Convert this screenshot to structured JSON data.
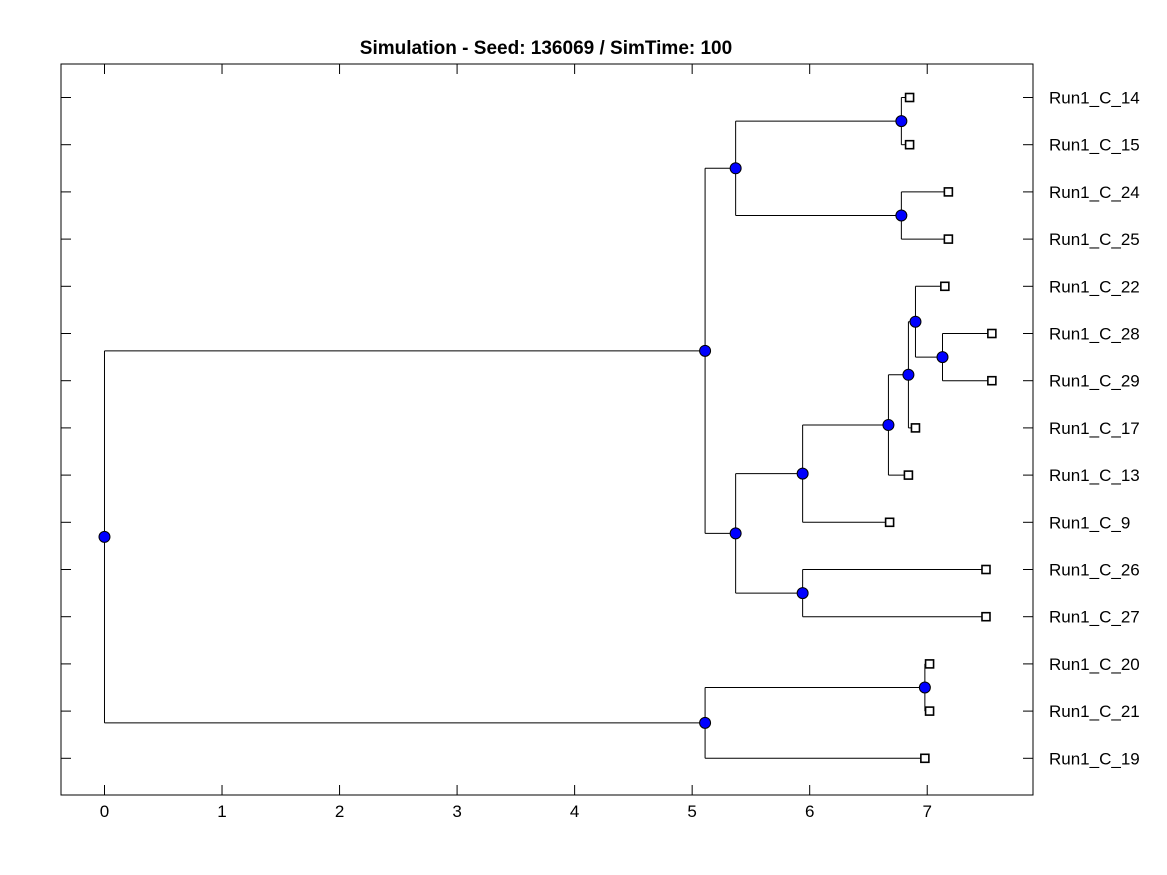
{
  "title": "Simulation - Seed: 136069 / SimTime: 100",
  "colors": {
    "node_fill": "#0000ff",
    "leaf_fill": "#ffffff",
    "stroke": "#000000"
  },
  "x_axis": {
    "min": -0.37,
    "max": 7.9,
    "ticks": [
      0,
      1,
      2,
      3,
      4,
      5,
      6,
      7
    ]
  },
  "leaves": [
    {
      "id": "C14",
      "label": "Run1_C_14",
      "x": 6.85
    },
    {
      "id": "C15",
      "label": "Run1_C_15",
      "x": 6.85
    },
    {
      "id": "C24",
      "label": "Run1_C_24",
      "x": 7.18
    },
    {
      "id": "C25",
      "label": "Run1_C_25",
      "x": 7.18
    },
    {
      "id": "C22",
      "label": "Run1_C_22",
      "x": 7.15
    },
    {
      "id": "C28",
      "label": "Run1_C_28",
      "x": 7.55
    },
    {
      "id": "C29",
      "label": "Run1_C_29",
      "x": 7.55
    },
    {
      "id": "C17",
      "label": "Run1_C_17",
      "x": 6.9
    },
    {
      "id": "C13",
      "label": "Run1_C_13",
      "x": 6.84
    },
    {
      "id": "C9",
      "label": "Run1_C_9",
      "x": 6.68
    },
    {
      "id": "C26",
      "label": "Run1_C_26",
      "x": 7.5
    },
    {
      "id": "C27",
      "label": "Run1_C_27",
      "x": 7.5
    },
    {
      "id": "C20",
      "label": "Run1_C_20",
      "x": 7.02
    },
    {
      "id": "C21",
      "label": "Run1_C_21",
      "x": 7.02
    },
    {
      "id": "C19",
      "label": "Run1_C_19",
      "x": 6.98
    }
  ],
  "nodes": [
    {
      "id": "n1415",
      "x": 6.78,
      "children": [
        "C14",
        "C15"
      ]
    },
    {
      "id": "n2425",
      "x": 6.78,
      "children": [
        "C24",
        "C25"
      ]
    },
    {
      "id": "nTop",
      "x": 5.37,
      "children": [
        "n1415",
        "n2425"
      ]
    },
    {
      "id": "n2829",
      "x": 7.13,
      "children": [
        "C28",
        "C29"
      ]
    },
    {
      "id": "n22",
      "x": 6.9,
      "children": [
        "C22",
        "n2829"
      ]
    },
    {
      "id": "n17",
      "x": 6.84,
      "children": [
        "n22",
        "C17"
      ]
    },
    {
      "id": "n13",
      "x": 6.67,
      "children": [
        "n17",
        "C13"
      ]
    },
    {
      "id": "n9",
      "x": 5.94,
      "children": [
        "n13",
        "C9"
      ]
    },
    {
      "id": "n2627",
      "x": 5.94,
      "children": [
        "C26",
        "C27"
      ]
    },
    {
      "id": "nMid",
      "x": 5.37,
      "children": [
        "n9",
        "n2627"
      ]
    },
    {
      "id": "nUpper",
      "x": 5.11,
      "children": [
        "nTop",
        "nMid"
      ]
    },
    {
      "id": "n2021",
      "x": 6.98,
      "children": [
        "C20",
        "C21"
      ]
    },
    {
      "id": "nLow",
      "x": 5.11,
      "children": [
        "n2021",
        "C19"
      ]
    },
    {
      "id": "root",
      "x": 0.0,
      "children": [
        "nUpper",
        "nLow"
      ]
    }
  ]
}
